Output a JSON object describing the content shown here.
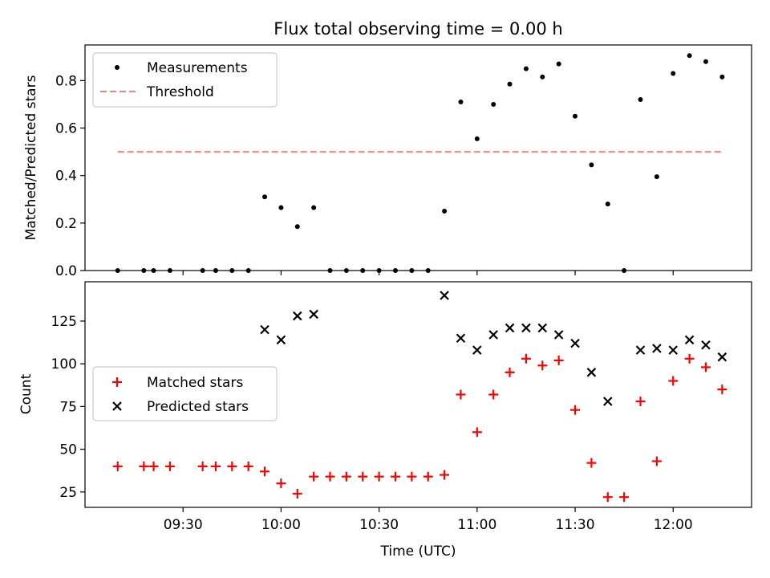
{
  "chart_data": [
    {
      "type": "scatter",
      "title": "Flux total observing time = 0.00 h",
      "xlabel": "",
      "ylabel": "Matched/Predicted stars",
      "xlim": [
        "09:00",
        "12:24"
      ],
      "ylim": [
        0,
        0.95
      ],
      "yticks": [
        "0.0",
        "0.2",
        "0.4",
        "0.6",
        "0.8"
      ],
      "grid": false,
      "legend_position": "upper-left",
      "series": [
        {
          "name": "Measurements",
          "marker": "dot",
          "color": "#000000",
          "x": [
            "09:10",
            "09:18",
            "09:21",
            "09:26",
            "09:36",
            "09:40",
            "09:45",
            "09:50",
            "09:55",
            "10:00",
            "10:05",
            "10:10",
            "10:15",
            "10:20",
            "10:25",
            "10:30",
            "10:35",
            "10:40",
            "10:45",
            "10:50",
            "10:55",
            "11:00",
            "11:05",
            "11:10",
            "11:15",
            "11:20",
            "11:25",
            "11:30",
            "11:35",
            "11:40",
            "11:45",
            "11:50",
            "11:55",
            "12:00",
            "12:05",
            "12:10",
            "12:15"
          ],
          "y": [
            0,
            0,
            0,
            0,
            0,
            0,
            0,
            0,
            0.31,
            0.265,
            0.185,
            0.265,
            0,
            0,
            0,
            0,
            0,
            0,
            0,
            0.25,
            0.71,
            0.555,
            0.7,
            0.785,
            0.85,
            0.815,
            0.87,
            0.65,
            0.445,
            0.28,
            0,
            0.72,
            0.395,
            0.83,
            0.905,
            0.88,
            0.815
          ]
        },
        {
          "name": "Threshold",
          "marker": "dashed-line",
          "color": "#ff7f7f",
          "x": [
            "09:10",
            "12:15"
          ],
          "y": [
            0.5,
            0.5
          ]
        }
      ]
    },
    {
      "type": "scatter",
      "title": "",
      "xlabel": "Time (UTC)",
      "ylabel": "Count",
      "xlim": [
        "09:00",
        "12:24"
      ],
      "ylim": [
        16,
        148
      ],
      "xticks": [
        "09:30",
        "10:00",
        "10:30",
        "11:00",
        "11:30",
        "12:00"
      ],
      "yticks": [
        "25",
        "50",
        "75",
        "100",
        "125"
      ],
      "grid": false,
      "legend_position": "center-left",
      "series": [
        {
          "name": "Matched stars",
          "marker": "plus",
          "color": "#ff0000",
          "x": [
            "09:10",
            "09:18",
            "09:21",
            "09:26",
            "09:36",
            "09:40",
            "09:45",
            "09:50",
            "09:55",
            "10:00",
            "10:05",
            "10:10",
            "10:15",
            "10:20",
            "10:25",
            "10:30",
            "10:35",
            "10:40",
            "10:45",
            "10:50",
            "10:55",
            "11:00",
            "11:05",
            "11:10",
            "11:15",
            "11:20",
            "11:25",
            "11:30",
            "11:35",
            "11:40",
            "11:45",
            "11:50",
            "11:55",
            "12:00",
            "12:05",
            "12:10",
            "12:15"
          ],
          "y": [
            40,
            40,
            40,
            40,
            40,
            40,
            40,
            40,
            37,
            30,
            24,
            34,
            34,
            34,
            34,
            34,
            34,
            34,
            34,
            35,
            82,
            60,
            82,
            95,
            103,
            99,
            102,
            73,
            42,
            22,
            22,
            78,
            43,
            90,
            103,
            98,
            85
          ]
        },
        {
          "name": "Predicted stars",
          "marker": "x",
          "color": "#000000",
          "x": [
            "09:55",
            "10:00",
            "10:05",
            "10:10",
            "10:50",
            "10:55",
            "11:00",
            "11:05",
            "11:10",
            "11:15",
            "11:20",
            "11:25",
            "11:30",
            "11:35",
            "11:40",
            "11:50",
            "11:55",
            "12:00",
            "12:05",
            "12:10",
            "12:15"
          ],
          "y": [
            120,
            114,
            128,
            129,
            140,
            115,
            108,
            117,
            121,
            121,
            121,
            117,
            112,
            95,
            78,
            108,
            109,
            108,
            114,
            111,
            104
          ]
        }
      ]
    }
  ]
}
